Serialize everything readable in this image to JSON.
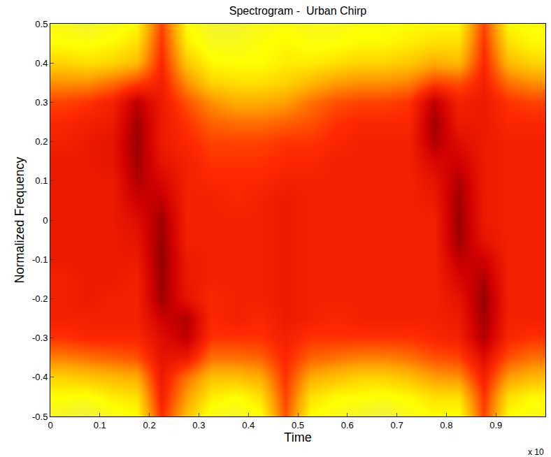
{
  "chart_data": {
    "type": "heatmap",
    "title": "Spectrogram -  Urban Chirp",
    "x_label": "Time",
    "y_label": "Normalized Frequency",
    "annotations": [
      "x 10"
    ],
    "x": [
      0.025,
      0.075,
      0.125,
      0.175,
      0.225,
      0.275,
      0.325,
      0.375,
      0.425,
      0.475,
      0.525,
      0.575,
      0.625,
      0.675,
      0.725,
      0.775,
      0.825,
      0.875,
      0.925,
      0.975
    ],
    "y": [
      -0.5,
      -0.45,
      -0.4,
      -0.35,
      -0.3,
      -0.25,
      -0.2,
      -0.15,
      -0.1,
      -0.05,
      0,
      0.05,
      0.1,
      0.15,
      0.2,
      0.25,
      0.3,
      0.35,
      0.4,
      0.45,
      0.5
    ],
    "z": [
      [
        40,
        38,
        42,
        45,
        75,
        55,
        42,
        40,
        44,
        70,
        45,
        42,
        40,
        38,
        42,
        45,
        44,
        72,
        45,
        42
      ],
      [
        45,
        44,
        48,
        50,
        78,
        60,
        48,
        45,
        50,
        72,
        50,
        46,
        45,
        44,
        46,
        50,
        50,
        74,
        50,
        46
      ],
      [
        52,
        54,
        56,
        58,
        80,
        66,
        55,
        55,
        58,
        74,
        58,
        55,
        52,
        52,
        55,
        60,
        62,
        78,
        60,
        56
      ],
      [
        64,
        66,
        68,
        70,
        82,
        80,
        66,
        66,
        68,
        76,
        68,
        66,
        64,
        64,
        66,
        70,
        72,
        84,
        70,
        66
      ],
      [
        74,
        76,
        76,
        76,
        84,
        90,
        74,
        74,
        74,
        78,
        74,
        74,
        74,
        74,
        74,
        76,
        78,
        92,
        76,
        74
      ],
      [
        78,
        78,
        78,
        78,
        88,
        92,
        76,
        78,
        76,
        80,
        78,
        76,
        78,
        78,
        78,
        78,
        80,
        94,
        78,
        78
      ],
      [
        78,
        80,
        78,
        78,
        94,
        82,
        76,
        78,
        78,
        80,
        78,
        78,
        78,
        78,
        78,
        78,
        82,
        95,
        78,
        78
      ],
      [
        78,
        80,
        80,
        78,
        95,
        80,
        78,
        78,
        78,
        80,
        78,
        78,
        78,
        78,
        78,
        78,
        86,
        92,
        78,
        78
      ],
      [
        80,
        80,
        80,
        80,
        96,
        80,
        78,
        78,
        78,
        80,
        78,
        78,
        78,
        78,
        78,
        78,
        90,
        88,
        78,
        78
      ],
      [
        80,
        80,
        80,
        82,
        95,
        78,
        78,
        78,
        78,
        80,
        78,
        78,
        78,
        78,
        78,
        78,
        94,
        82,
        78,
        78
      ],
      [
        80,
        80,
        80,
        84,
        94,
        78,
        78,
        78,
        78,
        80,
        78,
        78,
        78,
        78,
        78,
        78,
        95,
        80,
        78,
        78
      ],
      [
        80,
        80,
        80,
        88,
        90,
        78,
        78,
        76,
        78,
        80,
        78,
        78,
        78,
        78,
        78,
        80,
        94,
        80,
        78,
        78
      ],
      [
        80,
        80,
        80,
        92,
        86,
        78,
        76,
        76,
        76,
        78,
        78,
        78,
        78,
        78,
        78,
        82,
        92,
        80,
        78,
        78
      ],
      [
        80,
        80,
        82,
        94,
        82,
        78,
        74,
        74,
        74,
        76,
        76,
        78,
        78,
        78,
        78,
        86,
        88,
        80,
        78,
        78
      ],
      [
        78,
        80,
        82,
        95,
        80,
        76,
        72,
        72,
        72,
        74,
        74,
        76,
        78,
        78,
        78,
        92,
        84,
        80,
        78,
        78
      ],
      [
        76,
        78,
        80,
        94,
        80,
        74,
        68,
        66,
        66,
        68,
        70,
        74,
        76,
        76,
        76,
        94,
        80,
        80,
        76,
        76
      ],
      [
        72,
        74,
        78,
        90,
        80,
        70,
        62,
        58,
        58,
        60,
        66,
        70,
        72,
        72,
        74,
        90,
        78,
        80,
        74,
        72
      ],
      [
        62,
        62,
        66,
        72,
        78,
        62,
        52,
        50,
        50,
        52,
        56,
        60,
        62,
        62,
        64,
        72,
        70,
        78,
        66,
        62
      ],
      [
        52,
        50,
        52,
        56,
        76,
        54,
        46,
        45,
        45,
        48,
        48,
        50,
        52,
        52,
        54,
        58,
        56,
        76,
        56,
        52
      ],
      [
        45,
        44,
        46,
        50,
        74,
        48,
        42,
        42,
        44,
        46,
        44,
        44,
        46,
        46,
        48,
        50,
        50,
        74,
        50,
        46
      ],
      [
        42,
        40,
        42,
        46,
        72,
        45,
        40,
        40,
        42,
        44,
        42,
        42,
        44,
        44,
        45,
        46,
        46,
        72,
        46,
        44
      ]
    ],
    "zlim": [
      0,
      100
    ],
    "xlim": [
      0,
      1
    ],
    "ylim": [
      -0.5,
      0.5
    ],
    "xticks": [
      0,
      0.1,
      0.2,
      0.3,
      0.4,
      0.5,
      0.6,
      0.7,
      0.8,
      0.9
    ],
    "yticks": [
      -0.5,
      -0.4,
      -0.3,
      -0.2,
      -0.1,
      0,
      0.1,
      0.2,
      0.3,
      0.4,
      0.5
    ],
    "grid": false
  }
}
